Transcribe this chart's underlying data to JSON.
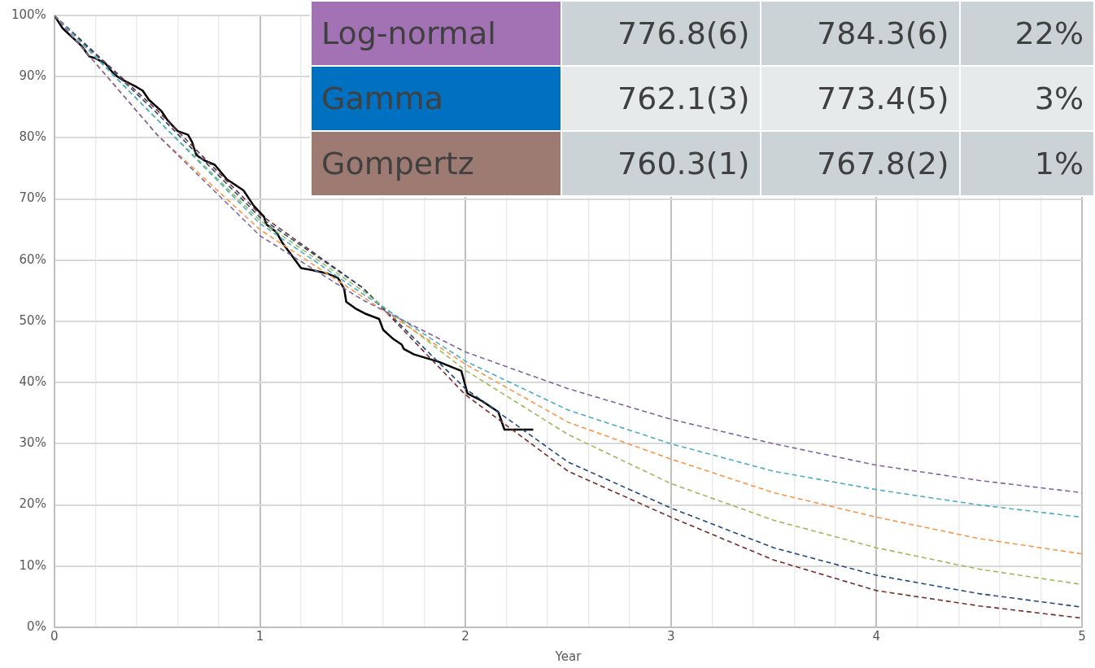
{
  "chart_data": {
    "type": "line",
    "xlabel": "Year",
    "xlim": [
      0,
      5
    ],
    "ylim": [
      0,
      100
    ],
    "xticks": [
      0,
      {
        "value": 0.2,
        "label": null
      },
      {
        "value": 0.4,
        "label": null
      },
      {
        "value": 0.6,
        "label": null
      },
      {
        "value": 0.8,
        "label": null
      },
      1,
      {
        "value": 1.2,
        "label": null
      },
      {
        "value": 1.4,
        "label": null
      },
      {
        "value": 1.6,
        "label": null
      },
      {
        "value": 1.8,
        "label": null
      },
      2,
      {
        "value": 2.2,
        "label": null
      },
      {
        "value": 2.4,
        "label": null
      },
      {
        "value": 2.6,
        "label": null
      },
      {
        "value": 2.8,
        "label": null
      },
      3,
      {
        "value": 3.2,
        "label": null
      },
      {
        "value": 3.4,
        "label": null
      },
      {
        "value": 3.6,
        "label": null
      },
      {
        "value": 3.8,
        "label": null
      },
      4,
      {
        "value": 4.2,
        "label": null
      },
      {
        "value": 4.4,
        "label": null
      },
      {
        "value": 4.6,
        "label": null
      },
      {
        "value": 4.8,
        "label": null
      },
      5
    ],
    "yticks": [
      {
        "value": 0,
        "label": "0%"
      },
      {
        "value": 10,
        "label": "10%"
      },
      {
        "value": 20,
        "label": "20%"
      },
      {
        "value": 30,
        "label": "30%"
      },
      {
        "value": 40,
        "label": "40%"
      },
      {
        "value": 50,
        "label": "50%"
      },
      {
        "value": 60,
        "label": "60%"
      },
      {
        "value": 70,
        "label": "70%"
      },
      {
        "value": 80,
        "label": "80%"
      },
      {
        "value": 90,
        "label": "90%"
      },
      {
        "value": 100,
        "label": "100%"
      }
    ],
    "grid": true,
    "legend": false,
    "marker": "none",
    "series": [
      {
        "color": "#8064a2",
        "line_style": "dashed",
        "x": [
          0,
          0.5,
          1,
          1.5,
          2,
          2.5,
          3,
          3.5,
          4,
          4.5,
          5
        ],
        "values": [
          100,
          80.5,
          64,
          53.5,
          45,
          39,
          34,
          30,
          26.5,
          24,
          22
        ]
      },
      {
        "color": "#4bacc6",
        "line_style": "dashed",
        "x": [
          0,
          0.5,
          1,
          1.5,
          2,
          2.5,
          3,
          3.5,
          4,
          4.5,
          5
        ],
        "values": [
          100,
          83,
          66,
          54.5,
          43.5,
          35.5,
          30,
          25.5,
          22.5,
          20,
          18
        ]
      },
      {
        "color": "#f79646",
        "line_style": "dashed",
        "x": [
          0,
          0.5,
          1,
          1.5,
          2,
          2.5,
          3,
          3.5,
          4,
          4.5,
          5
        ],
        "values": [
          100,
          80.5,
          65,
          54,
          43,
          33.5,
          27.5,
          22,
          18,
          14.5,
          12
        ]
      },
      {
        "color": "#9bbb59",
        "line_style": "dashed",
        "x": [
          0,
          0.5,
          1,
          1.5,
          2,
          2.5,
          3,
          3.5,
          4,
          4.5,
          5
        ],
        "values": [
          100,
          83,
          66.5,
          55,
          42,
          31.5,
          23.5,
          17.5,
          13,
          9.5,
          7
        ]
      },
      {
        "color": "#1f497d",
        "line_style": "dashed",
        "x": [
          0,
          0.5,
          1,
          1.5,
          2,
          2.5,
          3,
          3.5,
          4,
          4.5,
          5
        ],
        "values": [
          100,
          84,
          67,
          55.5,
          39,
          27,
          19.5,
          13,
          8.5,
          5.5,
          3.3
        ]
      },
      {
        "color": "#772c2a",
        "line_style": "dashed",
        "x": [
          0,
          0.5,
          1,
          1.5,
          2,
          2.5,
          3,
          3.5,
          4,
          4.5,
          5
        ],
        "values": [
          100,
          84.5,
          67.5,
          55.5,
          38,
          25.5,
          18,
          11,
          6,
          3.5,
          1.5
        ]
      },
      {
        "color": "#000000",
        "line_style": "solid",
        "x": [
          0,
          0.04,
          0.13,
          0.17,
          0.2,
          0.25,
          0.29,
          0.33,
          0.4,
          0.43,
          0.46,
          0.52,
          0.55,
          0.6,
          0.65,
          0.67,
          0.69,
          0.73,
          0.78,
          0.84,
          0.92,
          0.97,
          1.02,
          1.03,
          1.08,
          1.11,
          1.15,
          1.2,
          1.25,
          1.33,
          1.38,
          1.41,
          1.42,
          1.47,
          1.51,
          1.58,
          1.6,
          1.65,
          1.69,
          1.7,
          1.75,
          1.87,
          1.98,
          2.01,
          2.08,
          2.16,
          2.19,
          2.33
        ],
        "values": [
          100,
          97.9,
          95.1,
          93.3,
          93,
          92.1,
          90.4,
          89.5,
          88.3,
          87.7,
          86.2,
          84.4,
          82.9,
          81.1,
          80.5,
          79.3,
          77.2,
          76.3,
          75.6,
          73.2,
          71.4,
          68.9,
          67.1,
          65.9,
          64.6,
          62.8,
          61,
          58.7,
          58.4,
          57.8,
          57.1,
          55.3,
          53.2,
          52,
          51.3,
          50.4,
          48.6,
          47.1,
          46.2,
          45.5,
          44.6,
          43.4,
          41.9,
          38.2,
          37,
          35.2,
          32.3,
          32.3
        ]
      }
    ],
    "annotations": [
      "Log-normal",
      "776.8(6)",
      "784.3(6)",
      "22%",
      "Gamma",
      "762.1(3)",
      "773.4(5)",
      "3%",
      "Gompertz",
      "760.3(1)",
      "767.8(2)",
      "1%"
    ]
  }
}
